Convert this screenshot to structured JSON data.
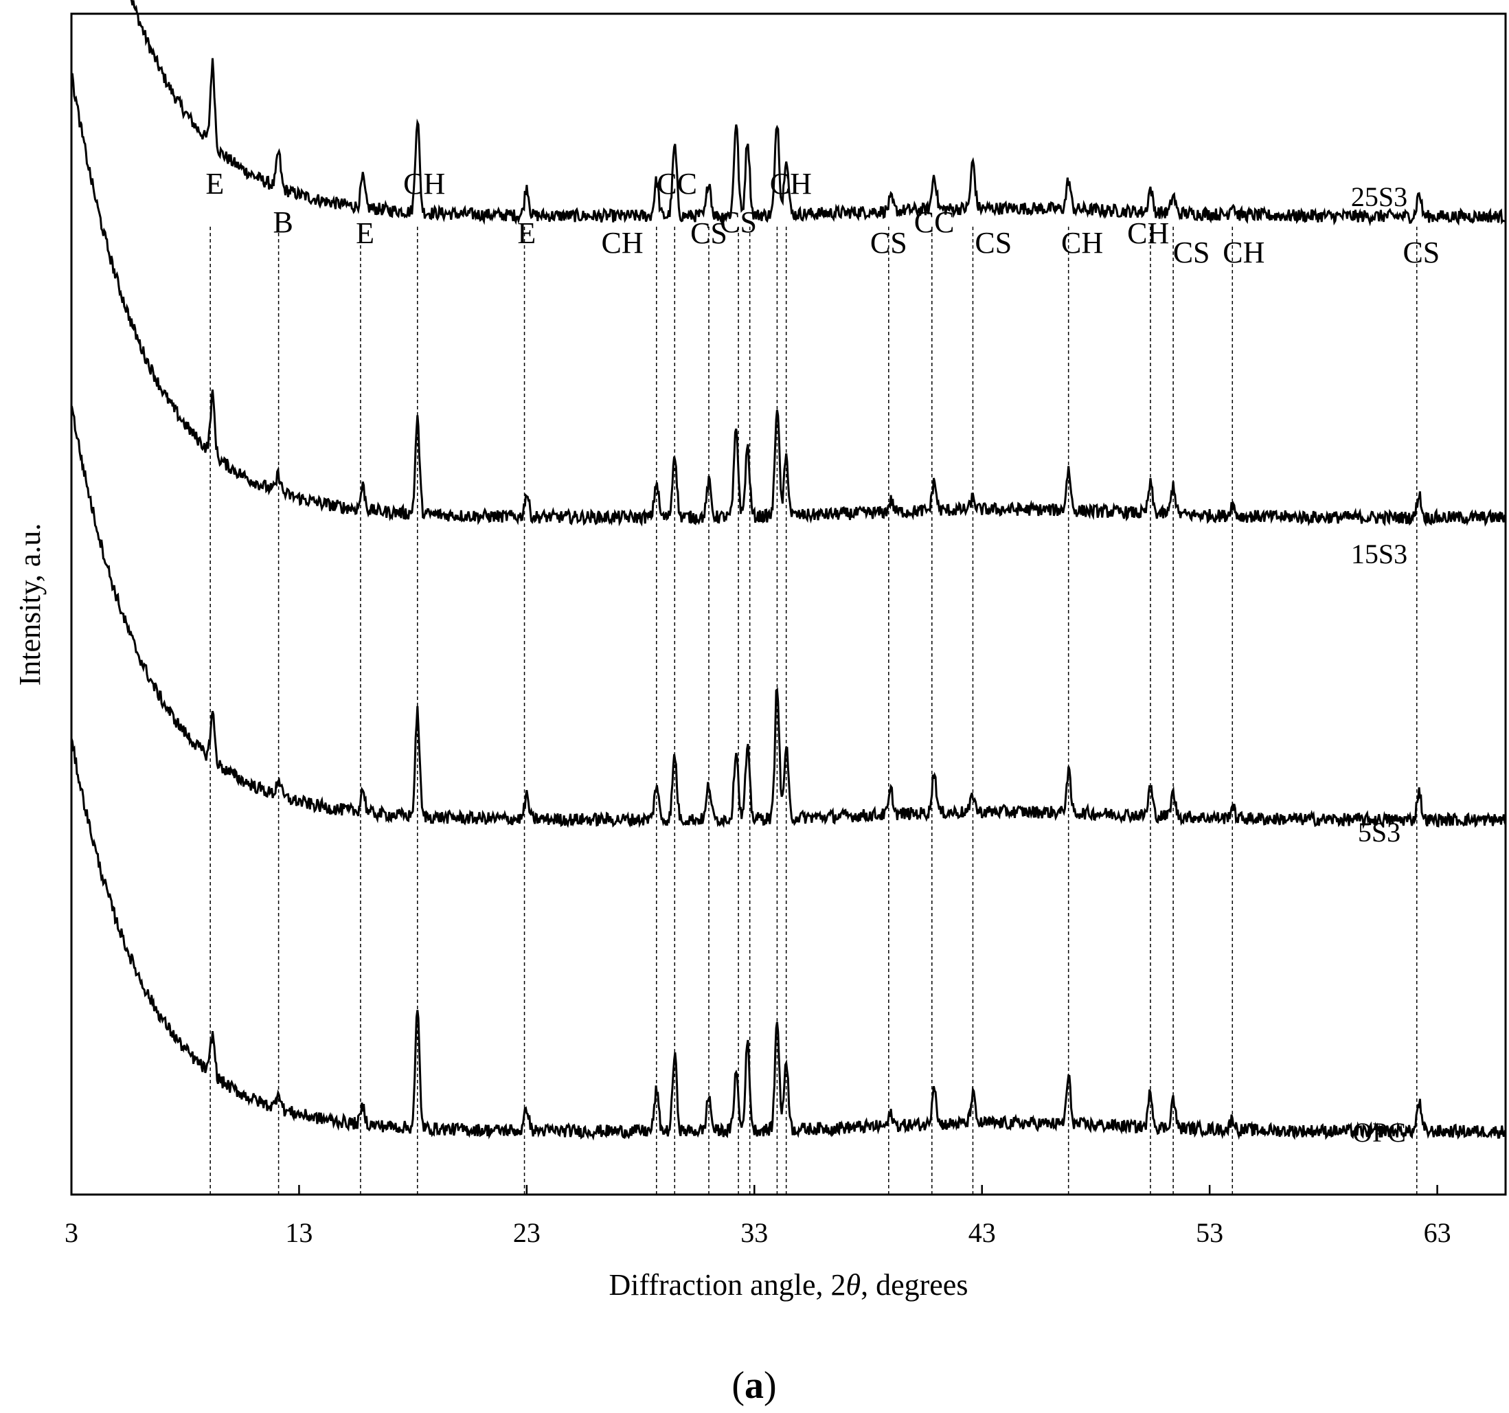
{
  "chart_data": {
    "type": "line",
    "xlabel_parts": [
      "Diffraction angle, 2",
      "θ",
      ", degrees"
    ],
    "ylabel": "Intensity, a.u.",
    "xlim": [
      3,
      66
    ],
    "xticks": [
      3,
      13,
      23,
      33,
      43,
      53,
      63
    ],
    "grid": false,
    "legend": "none",
    "panel_label_parts": [
      "(",
      "a",
      ")"
    ],
    "series": [
      {
        "name": "25S3",
        "offset": 3,
        "start": 9.5,
        "end": 1.0
      },
      {
        "name": "15S3",
        "offset": 2,
        "start": 8.5,
        "end": 0.9
      },
      {
        "name": "5S3",
        "offset": 1,
        "start": 8.0,
        "end": 0.9
      },
      {
        "name": "OPC",
        "offset": 0,
        "start": 7.5,
        "end": 0.8
      }
    ],
    "reference_lines": [
      9.1,
      12.1,
      15.7,
      18.2,
      22.9,
      28.7,
      29.5,
      31.0,
      32.3,
      32.8,
      34.0,
      34.4,
      38.9,
      40.8,
      42.6,
      46.8,
      50.4,
      51.4,
      54.0,
      62.1
    ],
    "peak_labels": [
      {
        "label": "E",
        "x": 9.3,
        "row": 0
      },
      {
        "label": "B",
        "x": 12.3,
        "row": 1
      },
      {
        "label": "E",
        "x": 15.9,
        "row": 2
      },
      {
        "label": "CH",
        "x": 18.5,
        "row": 0
      },
      {
        "label": "E",
        "x": 23.0,
        "row": 2
      },
      {
        "label": "CH",
        "x": 27.2,
        "row": 3
      },
      {
        "label": "CC",
        "x": 29.6,
        "row": 0
      },
      {
        "label": "CS",
        "x": 31.0,
        "row": 2
      },
      {
        "label": "CS",
        "x": 32.3,
        "row": 1
      },
      {
        "label": "CH",
        "x": 34.6,
        "row": 0
      },
      {
        "label": "CS",
        "x": 38.9,
        "row": 3
      },
      {
        "label": "CC",
        "x": 40.9,
        "row": 1
      },
      {
        "label": "CS",
        "x": 43.5,
        "row": 3
      },
      {
        "label": "CH",
        "x": 47.4,
        "row": 3
      },
      {
        "label": "CH",
        "x": 50.3,
        "row": 2
      },
      {
        "label": "CS",
        "x": 52.2,
        "row": 4
      },
      {
        "label": "CH",
        "x": 54.5,
        "row": 4
      },
      {
        "label": "CS",
        "x": 62.3,
        "row": 4
      }
    ],
    "peaks": [
      {
        "x": 9.2,
        "heights": [
          1.4,
          1.0,
          0.8,
          0.7
        ]
      },
      {
        "x": 12.1,
        "heights": [
          0.6,
          0.3,
          0.3,
          0.3
        ]
      },
      {
        "x": 15.8,
        "heights": [
          0.5,
          0.4,
          0.4,
          0.3
        ]
      },
      {
        "x": 18.2,
        "heights": [
          1.6,
          1.6,
          1.8,
          2.0
        ]
      },
      {
        "x": 23.0,
        "heights": [
          0.5,
          0.4,
          0.4,
          0.4
        ]
      },
      {
        "x": 28.7,
        "heights": [
          0.6,
          0.6,
          0.6,
          0.7
        ]
      },
      {
        "x": 29.5,
        "heights": [
          1.2,
          1.1,
          1.1,
          1.3
        ]
      },
      {
        "x": 31.0,
        "heights": [
          0.6,
          0.6,
          0.6,
          0.6
        ]
      },
      {
        "x": 32.2,
        "heights": [
          1.6,
          1.5,
          1.2,
          1.0
        ]
      },
      {
        "x": 32.7,
        "heights": [
          1.3,
          1.2,
          1.2,
          1.5
        ]
      },
      {
        "x": 34.0,
        "heights": [
          1.6,
          1.9,
          2.3,
          1.9
        ]
      },
      {
        "x": 34.4,
        "heights": [
          1.0,
          1.0,
          1.2,
          1.2
        ]
      },
      {
        "x": 39.0,
        "heights": [
          0.2,
          0.2,
          0.4,
          0.2
        ]
      },
      {
        "x": 40.9,
        "heights": [
          0.6,
          0.5,
          0.7,
          0.7
        ]
      },
      {
        "x": 42.6,
        "heights": [
          0.8,
          0.2,
          0.3,
          0.5
        ]
      },
      {
        "x": 46.8,
        "heights": [
          0.5,
          0.7,
          0.7,
          0.8
        ]
      },
      {
        "x": 50.4,
        "heights": [
          0.4,
          0.5,
          0.5,
          0.6
        ]
      },
      {
        "x": 51.4,
        "heights": [
          0.3,
          0.5,
          0.4,
          0.5
        ]
      },
      {
        "x": 54.0,
        "heights": [
          0.2,
          0.2,
          0.2,
          0.2
        ]
      },
      {
        "x": 62.2,
        "heights": [
          0.4,
          0.4,
          0.5,
          0.5
        ]
      }
    ]
  }
}
